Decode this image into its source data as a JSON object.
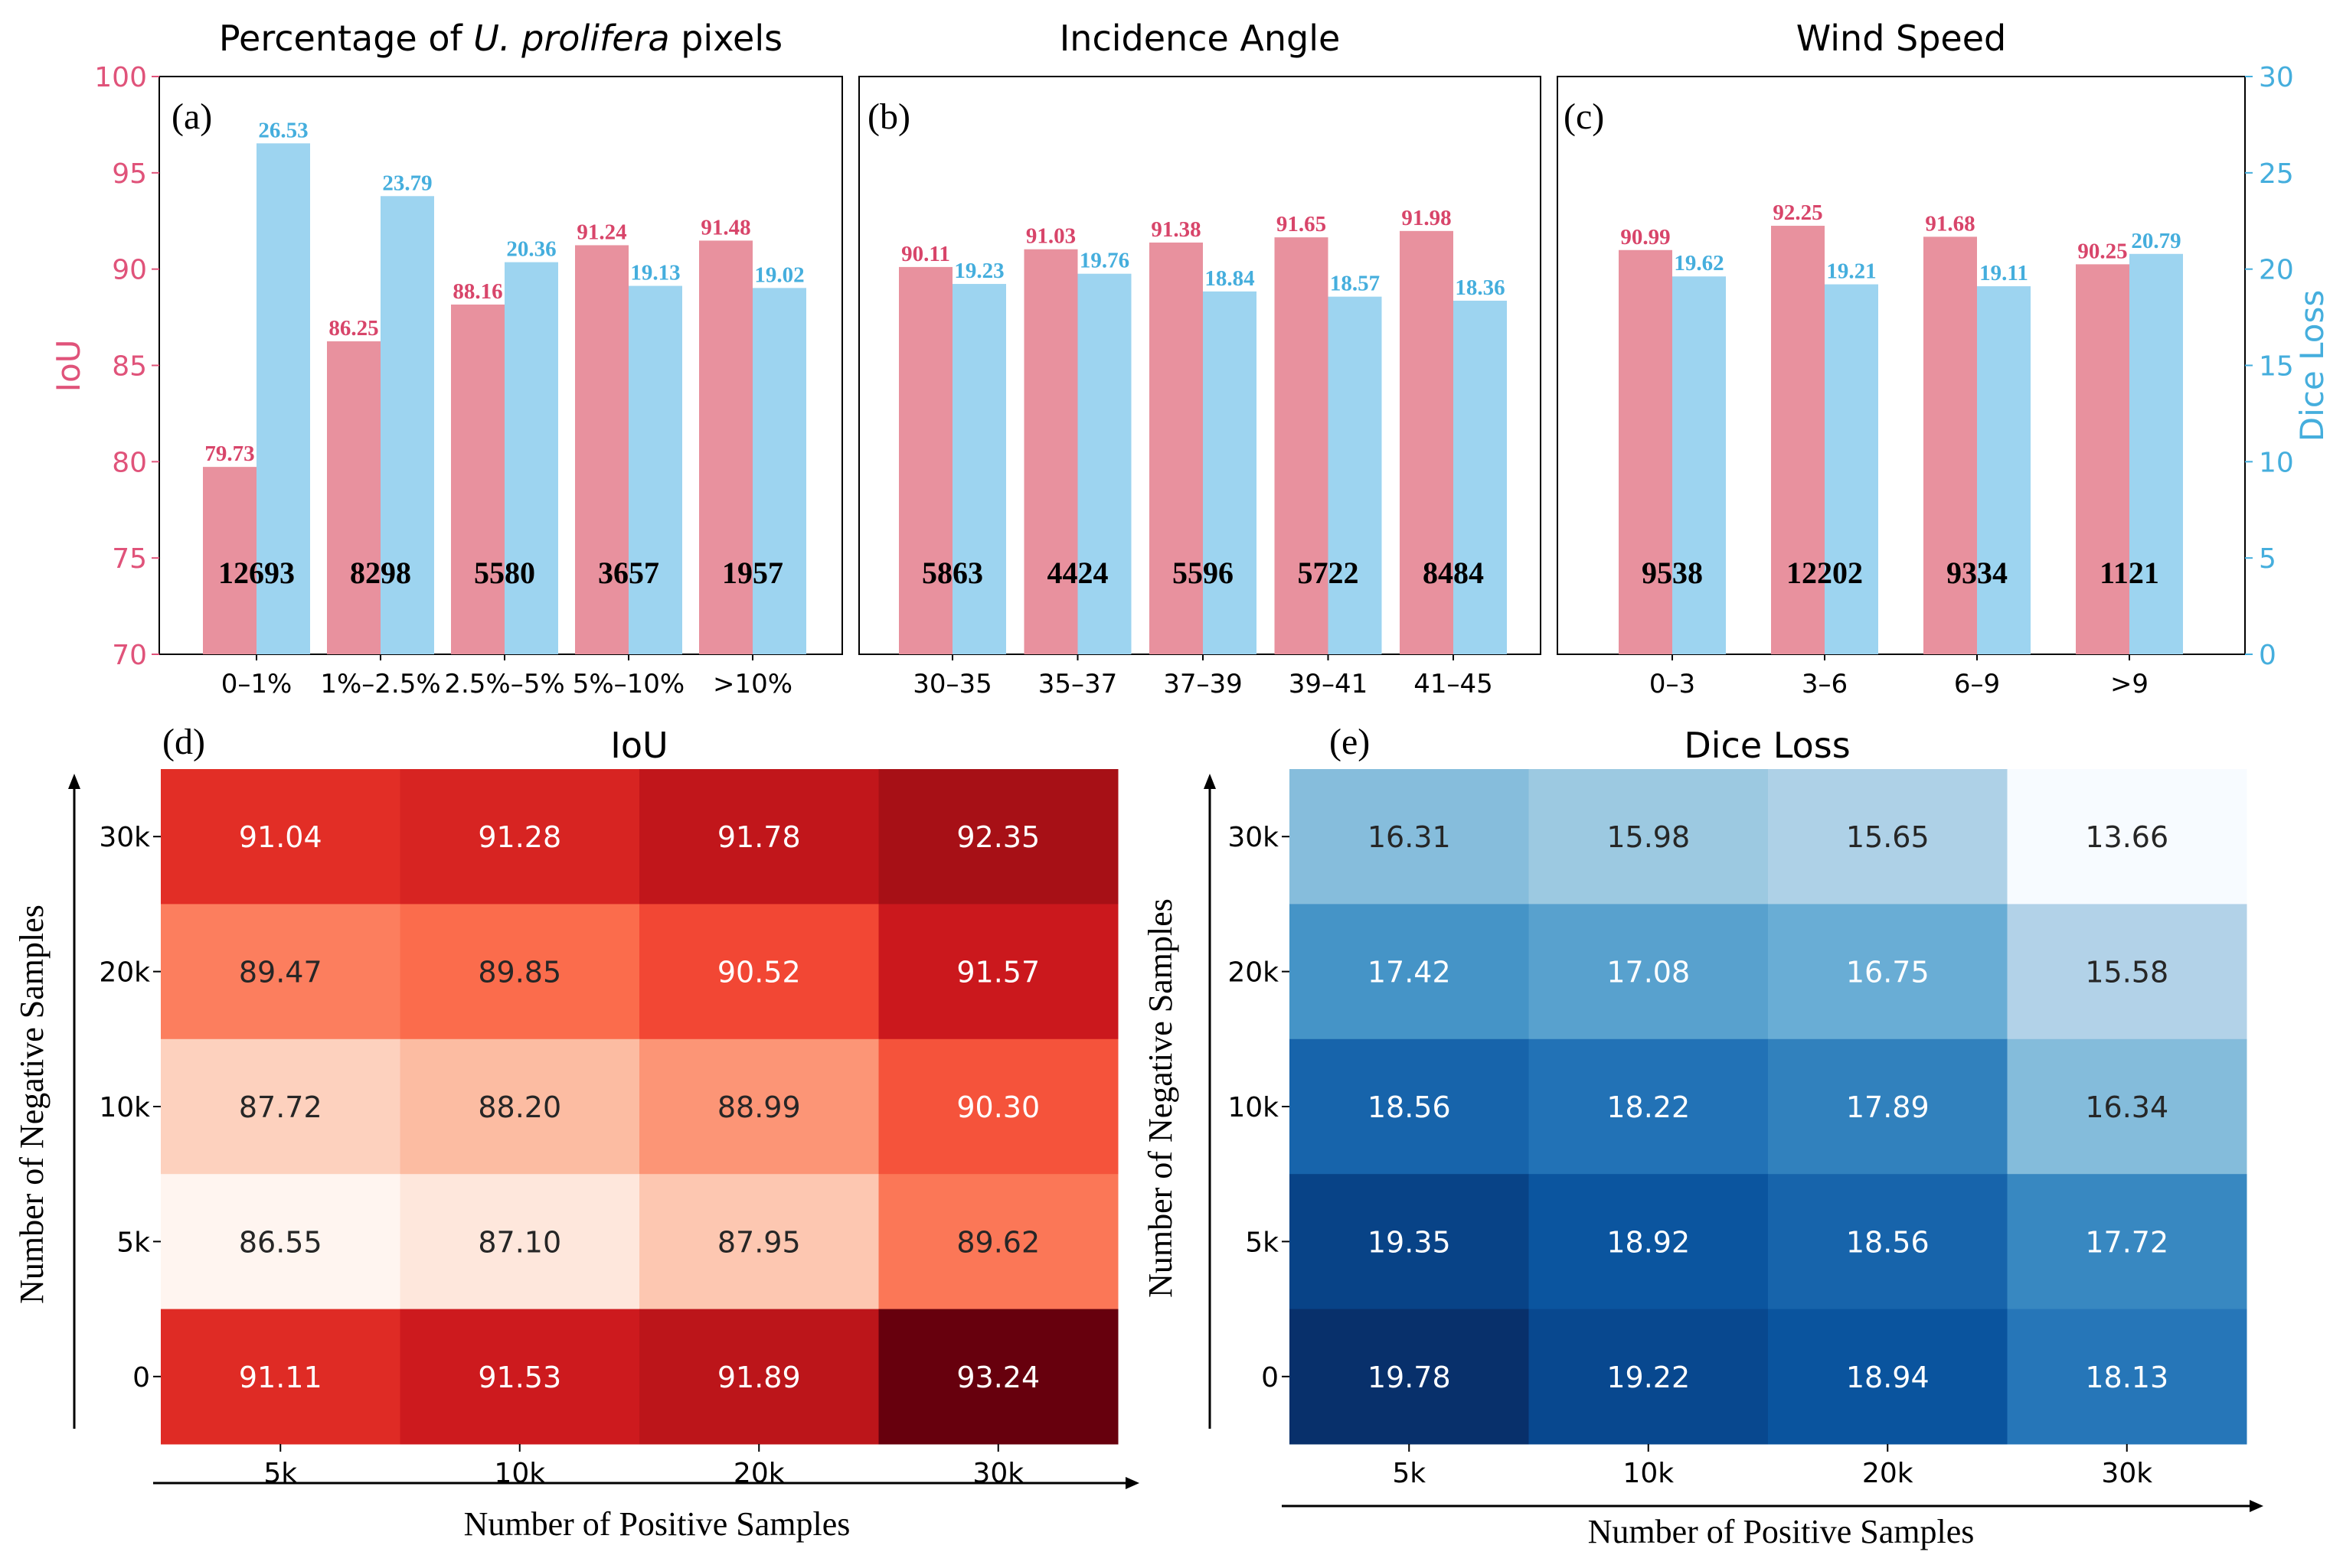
{
  "colors": {
    "iou_bar": "#E8919E",
    "iou_label": "#D8456A",
    "dice_bar": "#9DD4F0",
    "dice_label": "#45AEDD",
    "iou_axis": "#E0537A",
    "dice_axis": "#45AEDD",
    "red_scale": [
      "#FFF5F0",
      "#FEE0D2",
      "#FCBBA1",
      "#FC9272",
      "#FB6A4A",
      "#EF3B2C",
      "#CB181D",
      "#A50F15",
      "#67000D"
    ],
    "blue_scale": [
      "#F7FBFF",
      "#DEEBF7",
      "#C6DBEF",
      "#9ECAE1",
      "#6BAED6",
      "#4292C6",
      "#2171B5",
      "#08519C",
      "#08306B"
    ]
  },
  "chart_data": [
    {
      "type": "bar",
      "panel": "(a)",
      "title_prefix": "Percentage of ",
      "title_italic": "U. prolifera",
      "title_suffix": " pixels",
      "categories": [
        "0–1%",
        "1%–2.5%",
        "2.5%–5%",
        "5%–10%",
        ">10%"
      ],
      "series": [
        {
          "name": "IoU",
          "axis": "left",
          "values": [
            79.73,
            86.25,
            88.16,
            91.24,
            91.48
          ]
        },
        {
          "name": "Dice Loss",
          "axis": "right",
          "values": [
            26.53,
            23.79,
            20.36,
            19.13,
            19.02
          ]
        }
      ],
      "counts": [
        12693,
        8298,
        5580,
        3657,
        1957
      ],
      "ylim": [
        70,
        100
      ],
      "y2lim": [
        0,
        30
      ]
    },
    {
      "type": "bar",
      "panel": "(b)",
      "title": "Incidence Angle",
      "categories": [
        "30–35",
        "35–37",
        "37–39",
        "39–41",
        "41–45"
      ],
      "series": [
        {
          "name": "IoU",
          "axis": "left",
          "values": [
            90.11,
            91.03,
            91.38,
            91.65,
            91.98
          ]
        },
        {
          "name": "Dice Loss",
          "axis": "right",
          "values": [
            19.23,
            19.76,
            18.84,
            18.57,
            18.36
          ]
        }
      ],
      "counts": [
        5863,
        4424,
        5596,
        5722,
        8484
      ],
      "ylim": [
        70,
        100
      ],
      "y2lim": [
        0,
        30
      ]
    },
    {
      "type": "bar",
      "panel": "(c)",
      "title": "Wind Speed",
      "categories": [
        "0–3",
        "3–6",
        "6–9",
        ">9"
      ],
      "series": [
        {
          "name": "IoU",
          "axis": "left",
          "values": [
            90.99,
            92.25,
            91.68,
            90.25
          ]
        },
        {
          "name": "Dice Loss",
          "axis": "right",
          "values": [
            19.62,
            19.21,
            19.11,
            20.79
          ]
        }
      ],
      "counts": [
        9538,
        12202,
        9334,
        1121
      ],
      "ylim": [
        70,
        100
      ],
      "y2lim": [
        0,
        30
      ]
    },
    {
      "type": "heatmap",
      "panel": "(d)",
      "title": "IoU",
      "x_categories": [
        "5k",
        "10k",
        "20k",
        "30k"
      ],
      "y_categories": [
        "30k",
        "20k",
        "10k",
        "5k",
        "0"
      ],
      "xlabel": "Number of Positive Samples",
      "ylabel": "Number of Negative Samples",
      "values": [
        [
          91.04,
          91.28,
          91.78,
          92.35
        ],
        [
          89.47,
          89.85,
          90.52,
          91.57
        ],
        [
          87.72,
          88.2,
          88.99,
          90.3
        ],
        [
          86.55,
          87.1,
          87.95,
          89.62
        ],
        [
          91.11,
          91.53,
          91.89,
          93.24
        ]
      ],
      "labels": [
        [
          "91.04",
          "91.28",
          "91.78",
          "92.35"
        ],
        [
          "89.47",
          "89.85",
          "90.52",
          "91.57"
        ],
        [
          "87.72",
          "88.20",
          "88.99",
          "90.30"
        ],
        [
          "86.55",
          "87.10",
          "87.95",
          "89.62"
        ],
        [
          "91.11",
          "91.53",
          "91.89",
          "93.24"
        ]
      ],
      "colormap": "Reds"
    },
    {
      "type": "heatmap",
      "panel": "(e)",
      "title": "Dice Loss",
      "x_categories": [
        "5k",
        "10k",
        "20k",
        "30k"
      ],
      "y_categories": [
        "30k",
        "20k",
        "10k",
        "5k",
        "0"
      ],
      "xlabel": "Number of Positive Samples",
      "ylabel": "Number of Negative Samples",
      "values": [
        [
          16.31,
          15.98,
          15.65,
          13.66
        ],
        [
          17.42,
          17.08,
          16.75,
          15.58
        ],
        [
          18.56,
          18.22,
          17.89,
          16.34
        ],
        [
          19.35,
          18.92,
          18.56,
          17.72
        ],
        [
          19.78,
          19.22,
          18.94,
          18.13
        ]
      ],
      "labels": [
        [
          "16.31",
          "15.98",
          "15.65",
          "13.66"
        ],
        [
          "17.42",
          "17.08",
          "16.75",
          "15.58"
        ],
        [
          "18.56",
          "18.22",
          "17.89",
          "16.34"
        ],
        [
          "19.35",
          "18.92",
          "18.56",
          "17.72"
        ],
        [
          "19.78",
          "19.22",
          "18.94",
          "18.13"
        ]
      ],
      "colormap": "Blues"
    }
  ],
  "axes": {
    "left_ylabel": "IoU",
    "right_ylabel": "Dice Loss",
    "left_ticks": [
      "100",
      "95",
      "90",
      "85",
      "80",
      "75",
      "70"
    ],
    "right_ticks": [
      "30",
      "25",
      "20",
      "15",
      "10",
      "5",
      "0"
    ]
  }
}
